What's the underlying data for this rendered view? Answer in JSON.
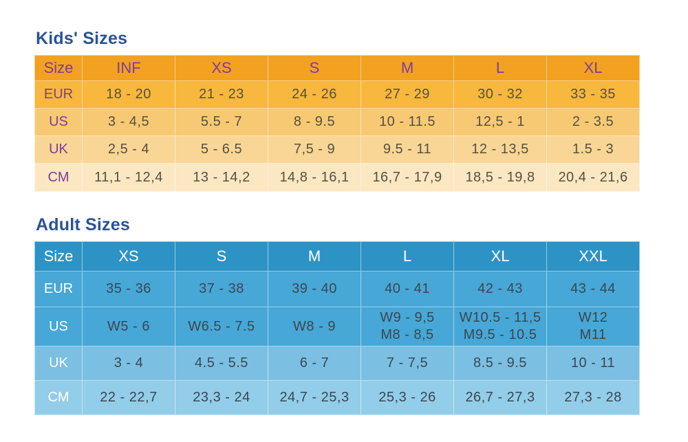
{
  "chart_data": [
    {
      "type": "table",
      "title": "Kids' Sizes",
      "columns": [
        "Size",
        "INF",
        "XS",
        "S",
        "M",
        "L",
        "XL"
      ],
      "rows": [
        {
          "label": "EUR",
          "values": [
            "18 - 20",
            "21 - 23",
            "24 - 26",
            "27 - 29",
            "30 - 32",
            "33 - 35"
          ]
        },
        {
          "label": "US",
          "values": [
            "3 - 4,5",
            "5.5 - 7",
            "8 - 9.5",
            "10 - 11.5",
            "12,5 - 1",
            "2 - 3.5"
          ]
        },
        {
          "label": "UK",
          "values": [
            "2,5 - 4",
            "5 - 6.5",
            "7,5 - 9",
            "9.5 - 11",
            "12 - 13,5",
            "1.5 - 3"
          ]
        },
        {
          "label": "CM",
          "values": [
            "11,1 - 12,4",
            "13 - 14,2",
            "14,8 - 16,1",
            "16,7 - 17,9",
            "18,5 - 19,8",
            "20,4 - 21,6"
          ]
        }
      ]
    },
    {
      "type": "table",
      "title": "Adult Sizes",
      "columns": [
        "Size",
        "XS",
        "S",
        "M",
        "L",
        "XL",
        "XXL"
      ],
      "rows": [
        {
          "label": "EUR",
          "values": [
            "35 - 36",
            "37 - 38",
            "39 - 40",
            "40 - 41",
            "42 - 43",
            "43 - 44"
          ]
        },
        {
          "label": "US",
          "values": [
            "W5 - 6",
            "W6.5 - 7.5",
            "W8 - 9",
            "W9 - 9,5\nM8 - 8,5",
            "W10.5 - 11,5\nM9.5 - 10.5",
            "W12\nM11"
          ]
        },
        {
          "label": "UK",
          "values": [
            "3 - 4",
            "4.5 - 5.5",
            "6 - 7",
            "7 - 7,5",
            "8.5 - 9.5",
            "10 - 11"
          ]
        },
        {
          "label": "CM",
          "values": [
            "22 - 22,7",
            "23,3 - 24",
            "24,7 - 25,3",
            "25,3 - 26",
            "26,7 - 27,3",
            "27,3 - 28"
          ]
        }
      ]
    }
  ],
  "colors": {
    "title_text": "#2A5397",
    "kids_header_bg": "#F3A120",
    "kids_eur_bg": "#F8B73D",
    "kids_us_bg": "#F8C973",
    "kids_uk_bg": "#F9D695",
    "kids_cm_bg": "#FBE7C2",
    "kids_label_text": "#7C3E99",
    "kids_value_text": "#55503F",
    "adult_header_bg": "#2D93C5",
    "adult_eur_bg": "#47A7D6",
    "adult_us_bg": "#47A7D6",
    "adult_uk_bg": "#7BC0E3",
    "adult_cm_bg": "#92CDE9",
    "adult_label_text": "#FFFFFF",
    "adult_value_text": "#3B4750"
  }
}
